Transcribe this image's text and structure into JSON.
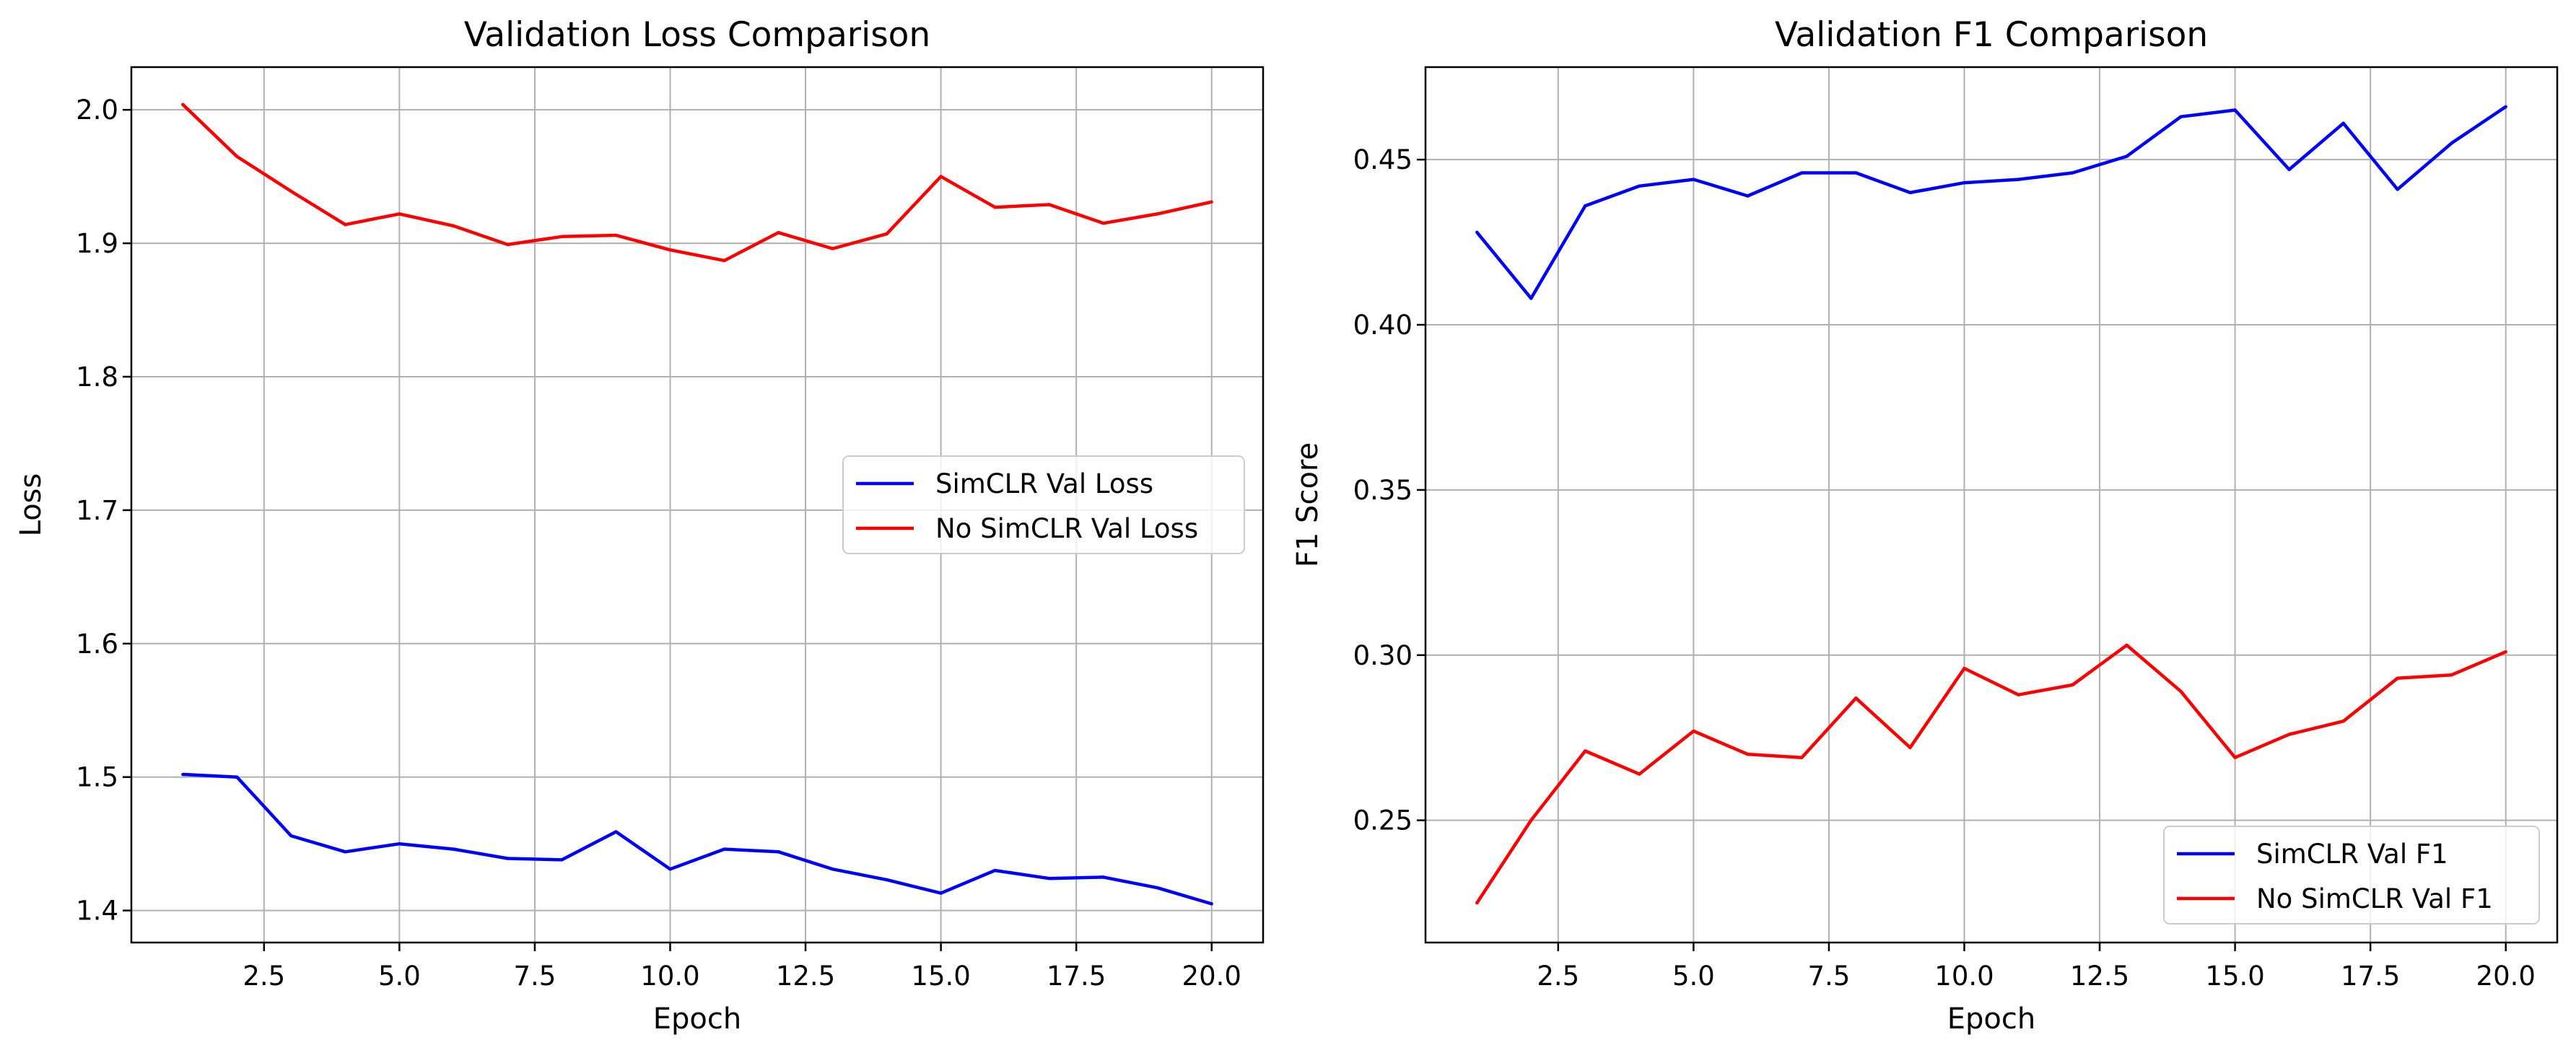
{
  "chart_data": [
    {
      "type": "line",
      "title": "Validation Loss Comparison",
      "xlabel": "Epoch",
      "ylabel": "Loss",
      "x": [
        1,
        2,
        3,
        4,
        5,
        6,
        7,
        8,
        9,
        10,
        11,
        12,
        13,
        14,
        15,
        16,
        17,
        18,
        19,
        20
      ],
      "xlim": [
        0.05,
        20.95
      ],
      "ylim": [
        1.376,
        2.032
      ],
      "xticks": [
        2.5,
        5.0,
        7.5,
        10.0,
        12.5,
        15.0,
        17.5,
        20.0
      ],
      "xtick_labels": [
        "2.5",
        "5.0",
        "7.5",
        "10.0",
        "12.5",
        "15.0",
        "17.5",
        "20.0"
      ],
      "yticks": [
        1.4,
        1.5,
        1.6,
        1.7,
        1.8,
        1.9,
        2.0
      ],
      "ytick_labels": [
        "1.4",
        "1.5",
        "1.6",
        "1.7",
        "1.8",
        "1.9",
        "2.0"
      ],
      "grid": true,
      "legend_position": "center-right",
      "series": [
        {
          "name": "SimCLR Val Loss",
          "color": "#0000ff",
          "values": [
            1.502,
            1.5,
            1.456,
            1.444,
            1.45,
            1.446,
            1.439,
            1.438,
            1.459,
            1.431,
            1.446,
            1.444,
            1.431,
            1.423,
            1.413,
            1.43,
            1.424,
            1.425,
            1.417,
            1.405
          ]
        },
        {
          "name": "No SimCLR Val Loss",
          "color": "#ff0000",
          "values": [
            2.004,
            1.965,
            1.939,
            1.914,
            1.922,
            1.913,
            1.899,
            1.905,
            1.906,
            1.895,
            1.887,
            1.908,
            1.896,
            1.907,
            1.95,
            1.927,
            1.929,
            1.915,
            1.922,
            1.931
          ]
        }
      ]
    },
    {
      "type": "line",
      "title": "Validation F1 Comparison",
      "xlabel": "Epoch",
      "ylabel": "F1 Score",
      "x": [
        1,
        2,
        3,
        4,
        5,
        6,
        7,
        8,
        9,
        10,
        11,
        12,
        13,
        14,
        15,
        16,
        17,
        18,
        19,
        20
      ],
      "xlim": [
        0.05,
        20.95
      ],
      "ylim": [
        0.213,
        0.478
      ],
      "xticks": [
        2.5,
        5.0,
        7.5,
        10.0,
        12.5,
        15.0,
        17.5,
        20.0
      ],
      "xtick_labels": [
        "2.5",
        "5.0",
        "7.5",
        "10.0",
        "12.5",
        "15.0",
        "17.5",
        "20.0"
      ],
      "yticks": [
        0.25,
        0.3,
        0.35,
        0.4,
        0.45
      ],
      "ytick_labels": [
        "0.25",
        "0.30",
        "0.35",
        "0.40",
        "0.45"
      ],
      "grid": true,
      "legend_position": "lower-right",
      "series": [
        {
          "name": "SimCLR Val F1",
          "color": "#0000ff",
          "values": [
            0.428,
            0.408,
            0.436,
            0.442,
            0.444,
            0.439,
            0.446,
            0.446,
            0.44,
            0.443,
            0.444,
            0.446,
            0.451,
            0.463,
            0.465,
            0.447,
            0.461,
            0.441,
            0.455,
            0.466
          ]
        },
        {
          "name": "No SimCLR Val F1",
          "color": "#ff0000",
          "values": [
            0.225,
            0.25,
            0.271,
            0.264,
            0.277,
            0.27,
            0.269,
            0.287,
            0.272,
            0.296,
            0.288,
            0.291,
            0.303,
            0.289,
            0.269,
            0.276,
            0.28,
            0.293,
            0.294,
            0.301
          ]
        }
      ]
    }
  ]
}
